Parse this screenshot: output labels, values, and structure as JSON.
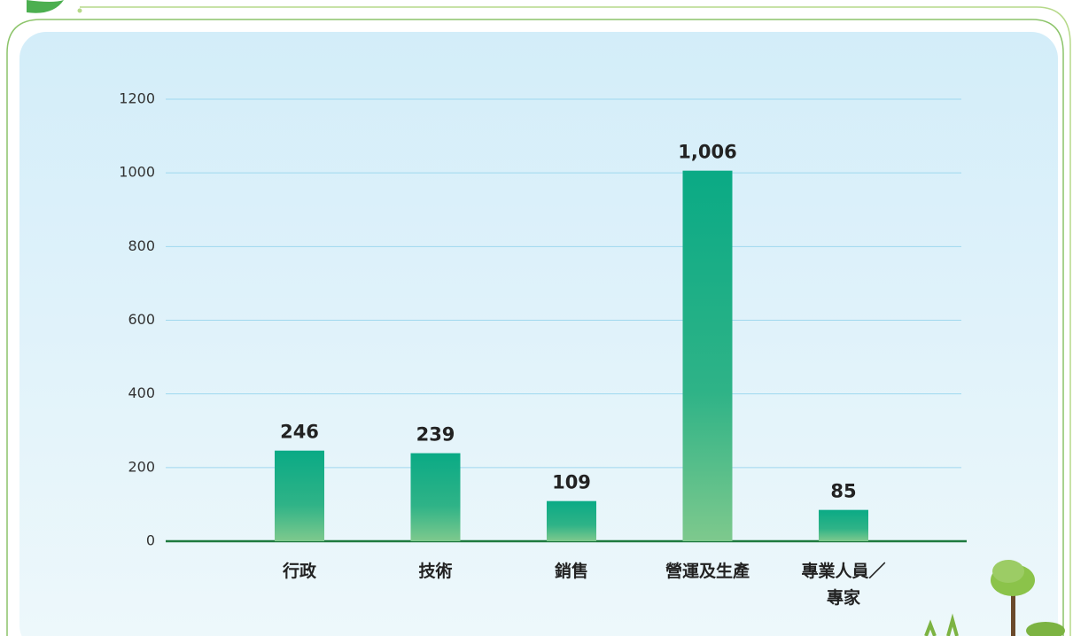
{
  "chart_data": {
    "type": "bar",
    "categories": [
      "行政",
      "技術",
      "銷售",
      "營運及生產",
      "專業人員／專家"
    ],
    "values": [
      246,
      239,
      109,
      1006,
      85
    ],
    "value_labels": [
      "246",
      "239",
      "109",
      "1,006",
      "85"
    ],
    "ylim": [
      0,
      1200
    ],
    "yticks": [
      0,
      200,
      400,
      600,
      800,
      1000,
      1200
    ],
    "grid": true,
    "color": "#0aaa85"
  }
}
